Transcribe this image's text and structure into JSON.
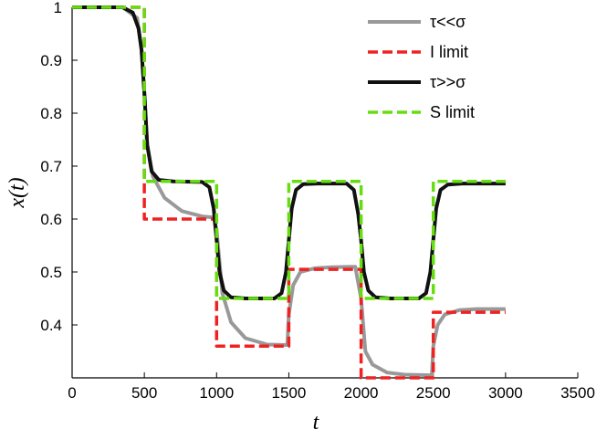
{
  "chart_data": {
    "type": "line",
    "xlabel": "t",
    "ylabel": "x(t)",
    "xlim": [
      0,
      3500
    ],
    "ylim": [
      0.3,
      1.0
    ],
    "x_ticks": [
      0,
      500,
      1000,
      1500,
      2000,
      2500,
      3000,
      3500
    ],
    "y_ticks": [
      0.4,
      0.5,
      0.6,
      0.7,
      0.8,
      0.9,
      1.0
    ],
    "x_tick_labels": [
      "0",
      "500",
      "1000",
      "1500",
      "2000",
      "2500",
      "3000",
      "3500"
    ],
    "y_tick_labels": [
      "0.4",
      "0.5",
      "0.6",
      "0.7",
      "0.8",
      "0.9",
      "1"
    ],
    "grid": false,
    "legend_position": "top-right",
    "series": [
      {
        "name": "τ<<σ",
        "style": "solid",
        "color": "#999999",
        "x": [
          0,
          350,
          450,
          480,
          500,
          520,
          560,
          640,
          760,
          900,
          980,
          1000,
          1040,
          1100,
          1200,
          1350,
          1490,
          1500,
          1530,
          1580,
          1680,
          1800,
          1960,
          2000,
          2030,
          2080,
          2180,
          2300,
          2490,
          2500,
          2530,
          2580,
          2680,
          2800,
          3000
        ],
        "values": [
          1.0,
          1.0,
          0.98,
          0.92,
          0.84,
          0.74,
          0.68,
          0.64,
          0.615,
          0.605,
          0.603,
          0.58,
          0.46,
          0.405,
          0.375,
          0.363,
          0.362,
          0.42,
          0.475,
          0.5,
          0.507,
          0.509,
          0.51,
          0.45,
          0.35,
          0.325,
          0.31,
          0.306,
          0.305,
          0.36,
          0.4,
          0.42,
          0.428,
          0.43,
          0.43
        ]
      },
      {
        "name": "I limit",
        "style": "dashed",
        "color": "#ee2222",
        "x": [
          0,
          500,
          500,
          1000,
          1000,
          1500,
          1500,
          2000,
          2000,
          2500,
          2500,
          3000
        ],
        "values": [
          1.0,
          1.0,
          0.6,
          0.6,
          0.36,
          0.36,
          0.505,
          0.505,
          0.3,
          0.3,
          0.424,
          0.424
        ]
      },
      {
        "name": "τ>>σ",
        "style": "solid",
        "color": "#111111",
        "x": [
          0,
          350,
          420,
          460,
          480,
          500,
          520,
          550,
          600,
          700,
          900,
          950,
          980,
          1000,
          1020,
          1050,
          1100,
          1200,
          1400,
          1450,
          1480,
          1500,
          1520,
          1550,
          1600,
          1700,
          1900,
          1950,
          1980,
          2000,
          2020,
          2050,
          2100,
          2200,
          2400,
          2450,
          2480,
          2500,
          2520,
          2550,
          2600,
          2700,
          3000
        ],
        "values": [
          1.0,
          1.0,
          0.99,
          0.96,
          0.92,
          0.84,
          0.74,
          0.69,
          0.674,
          0.671,
          0.67,
          0.66,
          0.62,
          0.56,
          0.5,
          0.465,
          0.452,
          0.45,
          0.45,
          0.46,
          0.5,
          0.56,
          0.62,
          0.655,
          0.666,
          0.667,
          0.667,
          0.655,
          0.61,
          0.56,
          0.5,
          0.465,
          0.452,
          0.45,
          0.45,
          0.46,
          0.5,
          0.56,
          0.62,
          0.655,
          0.665,
          0.667,
          0.667
        ]
      },
      {
        "name": "S limit",
        "style": "dashed",
        "color": "#66dd11",
        "x": [
          0,
          500,
          500,
          1000,
          1000,
          1500,
          1500,
          2000,
          2000,
          2500,
          2500,
          3000
        ],
        "values": [
          1.0,
          1.0,
          0.671,
          0.671,
          0.45,
          0.45,
          0.671,
          0.671,
          0.45,
          0.45,
          0.671,
          0.671
        ]
      }
    ]
  }
}
